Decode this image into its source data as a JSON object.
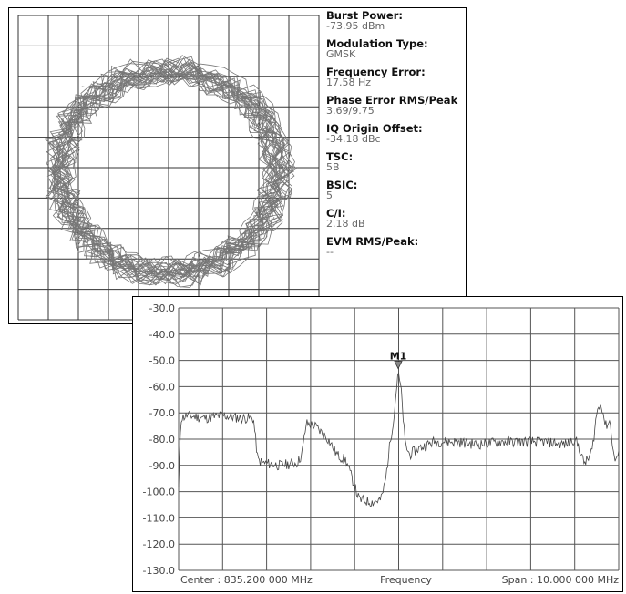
{
  "iq_panel": {
    "readouts": [
      {
        "label": "Burst Power:",
        "value": "-73.95 dBm"
      },
      {
        "label": "Modulation Type:",
        "value": "GMSK"
      },
      {
        "label": "Frequency Error:",
        "value": "17.58 Hz"
      },
      {
        "label": "Phase Error RMS/Peak",
        "value": "3.69/9.75"
      },
      {
        "label": "IQ Origin Offset:",
        "value": "-34.18 dBc"
      },
      {
        "label": "TSC:",
        "value": "5B"
      },
      {
        "label": "BSIC:",
        "value": "5"
      },
      {
        "label": "C/I:",
        "value": "2.18 dB"
      },
      {
        "label": "EVM RMS/Peak:",
        "value": "--"
      }
    ]
  },
  "chart_data": [
    {
      "type": "scatter",
      "title": "",
      "grid": true,
      "grid_divisions": {
        "x": 10,
        "y": 10
      },
      "xlim": [
        -1.4,
        1.4
      ],
      "ylim": [
        -1.4,
        1.4
      ],
      "description_shape": "ring of overlapping IQ trajectories, radius about 1.0",
      "nominal_radius": 1.0
    },
    {
      "type": "line",
      "title": "",
      "grid": true,
      "ylim": [
        -130,
        -30
      ],
      "yticks": [
        "-30.0",
        "-40.0",
        "-50.0",
        "-60.0",
        "-70.0",
        "-80.0",
        "-90.0",
        "-100.0",
        "-110.0",
        "-120.0",
        "-130.0"
      ],
      "xlim": [
        830.2,
        840.2
      ],
      "x_unit": "MHz",
      "xlabel": "Frequency",
      "center_label": "Center : 835.200 000 MHz",
      "span_label": "Span : 10.000 000 MHz",
      "marker": {
        "name": "M1",
        "x": 835.19,
        "y": -54.5
      },
      "series": [
        {
          "x": [
            830.2,
            830.25,
            830.4,
            830.8,
            831.2,
            831.6,
            831.9,
            832.0,
            832.1,
            832.5,
            832.9,
            833.0,
            833.1,
            833.3,
            833.6,
            833.7,
            833.8,
            834.0,
            834.3,
            834.6,
            834.8,
            834.9,
            835.0,
            835.1,
            835.18,
            835.25,
            835.35,
            835.45,
            835.6,
            836.0,
            836.5,
            837.0,
            837.5,
            838.0,
            838.5,
            839.0,
            839.2,
            839.3,
            839.4,
            839.5,
            839.6,
            839.7,
            839.8,
            839.9,
            840.0,
            840.1,
            840.2
          ],
          "y": [
            -99,
            -72,
            -71,
            -72,
            -71,
            -72,
            -72,
            -88,
            -89,
            -90,
            -89,
            -86,
            -74,
            -75,
            -80,
            -83,
            -86,
            -88,
            -103,
            -104,
            -103,
            -96,
            -82,
            -70,
            -55,
            -60,
            -82,
            -86,
            -84,
            -81,
            -81,
            -82,
            -81,
            -81,
            -81,
            -82,
            -80,
            -83,
            -89,
            -88,
            -84,
            -70,
            -66,
            -75,
            -73,
            -88,
            -86
          ]
        }
      ]
    }
  ]
}
